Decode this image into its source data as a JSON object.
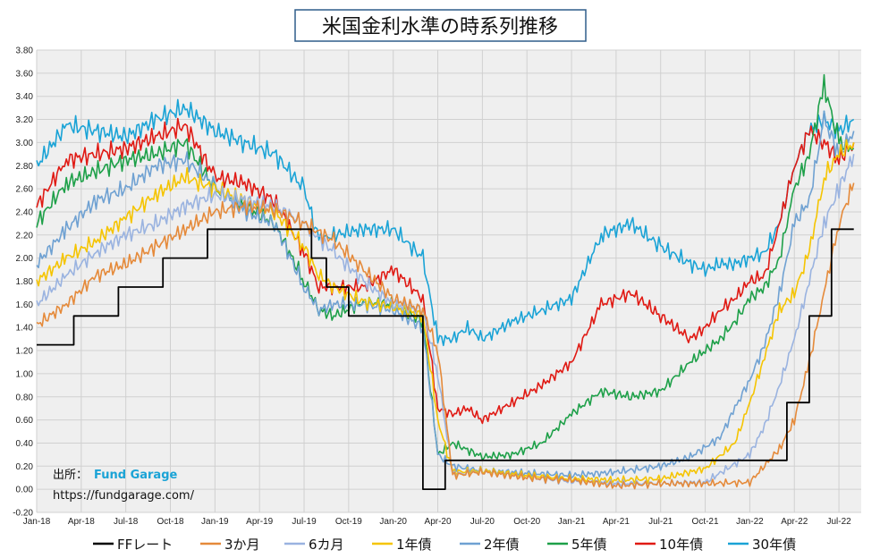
{
  "chart_data": {
    "type": "line",
    "title": "米国金利水準の時系列推移",
    "source_label": "出所：",
    "source_brand": "Fund Garage",
    "source_url": "https://fundgarage.com/",
    "ylim": [
      -0.2,
      3.8
    ],
    "y_ticks": [
      "3.80",
      "3.60",
      "3.40",
      "3.20",
      "3.00",
      "2.80",
      "2.60",
      "2.40",
      "2.20",
      "2.00",
      "1.80",
      "1.60",
      "1.40",
      "1.20",
      "1.00",
      "0.80",
      "0.60",
      "0.40",
      "0.20",
      "0.00",
      "-0.20"
    ],
    "x_ticks": [
      "Jan-18",
      "Apr-18",
      "Jul-18",
      "Oct-18",
      "Jan-19",
      "Apr-19",
      "Jul-19",
      "Oct-19",
      "Jan-20",
      "Apr-20",
      "Jul-20",
      "Oct-20",
      "Jan-21",
      "Apr-21",
      "Jul-21",
      "Oct-21",
      "Jan-22",
      "Apr-22",
      "Jul-22"
    ],
    "grid": true,
    "legend_position": "bottom",
    "series": [
      {
        "name": "FFレート",
        "color": "#000000",
        "step": true,
        "x": [
          0,
          2.5,
          2.5,
          5.5,
          5.5,
          8.5,
          8.5,
          11.5,
          11.5,
          18.5,
          18.5,
          19.5,
          19.5,
          21.0,
          21.0,
          26.0,
          26.0,
          27.5,
          27.5,
          50.5,
          50.5,
          52.0,
          52.0,
          53.5,
          53.5,
          54.5,
          54.5,
          55.0
        ],
        "values": [
          1.25,
          1.25,
          1.5,
          1.5,
          1.75,
          1.75,
          2.0,
          2.0,
          2.25,
          2.25,
          2.0,
          2.0,
          1.75,
          1.75,
          1.5,
          1.5,
          0.0,
          0.0,
          0.25,
          0.25,
          0.75,
          0.75,
          1.5,
          1.5,
          2.25,
          2.25,
          2.25,
          2.25
        ]
      },
      {
        "name": "3か月",
        "color": "#e58a3a",
        "x": [
          0,
          2,
          4,
          6,
          8,
          10,
          12,
          14,
          16,
          18,
          20,
          22,
          24,
          26,
          27,
          28,
          30,
          33,
          36,
          39,
          42,
          45,
          48,
          50,
          51,
          52,
          53,
          54,
          55
        ],
        "values": [
          1.42,
          1.6,
          1.85,
          1.95,
          2.1,
          2.25,
          2.4,
          2.45,
          2.42,
          2.3,
          2.15,
          1.9,
          1.65,
          1.55,
          1.2,
          0.12,
          0.15,
          0.1,
          0.08,
          0.03,
          0.05,
          0.05,
          0.06,
          0.35,
          0.6,
          1.1,
          1.7,
          2.3,
          2.65
        ]
      },
      {
        "name": "6カ月",
        "color": "#9ab3e0",
        "x": [
          0,
          2,
          4,
          6,
          8,
          10,
          12,
          14,
          16,
          18,
          20,
          22,
          24,
          26,
          27,
          28,
          30,
          33,
          36,
          39,
          42,
          45,
          48,
          49,
          50,
          51,
          52,
          53,
          54,
          55
        ],
        "values": [
          1.6,
          1.85,
          2.05,
          2.2,
          2.3,
          2.45,
          2.55,
          2.5,
          2.45,
          2.3,
          2.05,
          1.8,
          1.6,
          1.55,
          1.0,
          0.13,
          0.15,
          0.1,
          0.07,
          0.05,
          0.05,
          0.06,
          0.3,
          0.55,
          0.9,
          1.3,
          1.8,
          2.3,
          2.6,
          2.9
        ]
      },
      {
        "name": "1年債",
        "color": "#f5c400",
        "x": [
          0,
          2,
          4,
          6,
          8,
          10,
          12,
          14,
          16,
          18,
          19,
          20,
          22,
          24,
          26,
          27,
          28,
          30,
          33,
          36,
          39,
          42,
          45,
          47,
          48,
          49,
          50,
          51,
          52,
          53,
          54,
          55
        ],
        "values": [
          1.8,
          2.0,
          2.15,
          2.35,
          2.55,
          2.7,
          2.6,
          2.5,
          2.4,
          2.1,
          1.85,
          1.75,
          1.62,
          1.58,
          1.5,
          0.6,
          0.15,
          0.16,
          0.12,
          0.09,
          0.08,
          0.09,
          0.18,
          0.4,
          0.75,
          1.15,
          1.55,
          1.7,
          2.05,
          2.7,
          2.9,
          3.0
        ]
      },
      {
        "name": "2年債",
        "color": "#6fa1d2",
        "x": [
          0,
          2,
          4,
          6,
          8,
          10,
          12,
          14,
          16,
          18,
          19,
          20,
          22,
          24,
          26,
          27,
          28,
          30,
          33,
          36,
          39,
          42,
          44,
          46,
          47,
          48,
          49,
          50,
          51,
          52,
          53,
          54,
          55
        ],
        "values": [
          1.95,
          2.25,
          2.5,
          2.6,
          2.8,
          2.85,
          2.62,
          2.4,
          2.3,
          1.75,
          1.55,
          1.6,
          1.6,
          1.55,
          1.4,
          0.3,
          0.2,
          0.16,
          0.14,
          0.12,
          0.15,
          0.2,
          0.28,
          0.45,
          0.7,
          0.95,
          1.25,
          1.7,
          2.3,
          2.5,
          3.2,
          2.9,
          3.1
        ]
      },
      {
        "name": "5年債",
        "color": "#1ea049",
        "x": [
          0,
          2,
          4,
          6,
          8,
          10,
          12,
          14,
          16,
          18,
          19,
          20,
          22,
          24,
          26,
          27,
          28,
          30,
          32,
          34,
          36,
          38,
          40,
          42,
          44,
          46,
          47,
          48,
          49,
          50,
          51,
          52,
          53,
          54,
          55
        ],
        "values": [
          2.3,
          2.65,
          2.75,
          2.85,
          2.9,
          3.0,
          2.6,
          2.45,
          2.3,
          1.8,
          1.55,
          1.5,
          1.62,
          1.6,
          1.45,
          0.3,
          0.4,
          0.28,
          0.3,
          0.4,
          0.65,
          0.85,
          0.8,
          0.85,
          1.1,
          1.3,
          1.45,
          1.65,
          1.75,
          2.0,
          2.6,
          2.9,
          3.5,
          3.0,
          2.95
        ]
      },
      {
        "name": "10年債",
        "color": "#e01a14",
        "x": [
          0,
          2,
          4,
          6,
          8,
          10,
          12,
          14,
          16,
          18,
          19,
          20,
          22,
          24,
          26,
          27,
          28,
          29,
          30,
          32,
          34,
          36,
          38,
          40,
          42,
          44,
          45,
          46,
          47,
          48,
          49,
          50,
          51,
          52,
          53,
          54,
          55
        ],
        "values": [
          2.45,
          2.85,
          2.9,
          2.95,
          3.05,
          3.15,
          2.7,
          2.65,
          2.5,
          2.05,
          1.75,
          1.75,
          1.75,
          1.9,
          1.65,
          0.7,
          0.65,
          0.7,
          0.6,
          0.75,
          0.9,
          1.1,
          1.6,
          1.7,
          1.5,
          1.3,
          1.4,
          1.55,
          1.65,
          1.8,
          1.85,
          2.3,
          2.8,
          3.1,
          3.0,
          2.85,
          3.0
        ]
      },
      {
        "name": "30年債",
        "color": "#1aa3d6",
        "x": [
          0,
          2,
          4,
          6,
          8,
          10,
          12,
          14,
          16,
          18,
          19,
          20,
          22,
          24,
          26,
          27,
          28,
          29,
          30,
          32,
          34,
          36,
          38,
          40,
          42,
          44,
          45,
          46,
          47,
          48,
          49,
          50,
          51,
          52,
          53,
          54,
          55
        ],
        "values": [
          2.8,
          3.15,
          3.1,
          3.05,
          3.2,
          3.3,
          3.1,
          3.0,
          2.9,
          2.6,
          2.15,
          2.2,
          2.25,
          2.25,
          2.0,
          1.3,
          1.3,
          1.4,
          1.3,
          1.45,
          1.55,
          1.65,
          2.2,
          2.3,
          2.1,
          1.95,
          1.9,
          1.95,
          1.95,
          2.0,
          2.05,
          2.3,
          2.8,
          3.1,
          3.2,
          3.1,
          3.2
        ]
      }
    ]
  }
}
